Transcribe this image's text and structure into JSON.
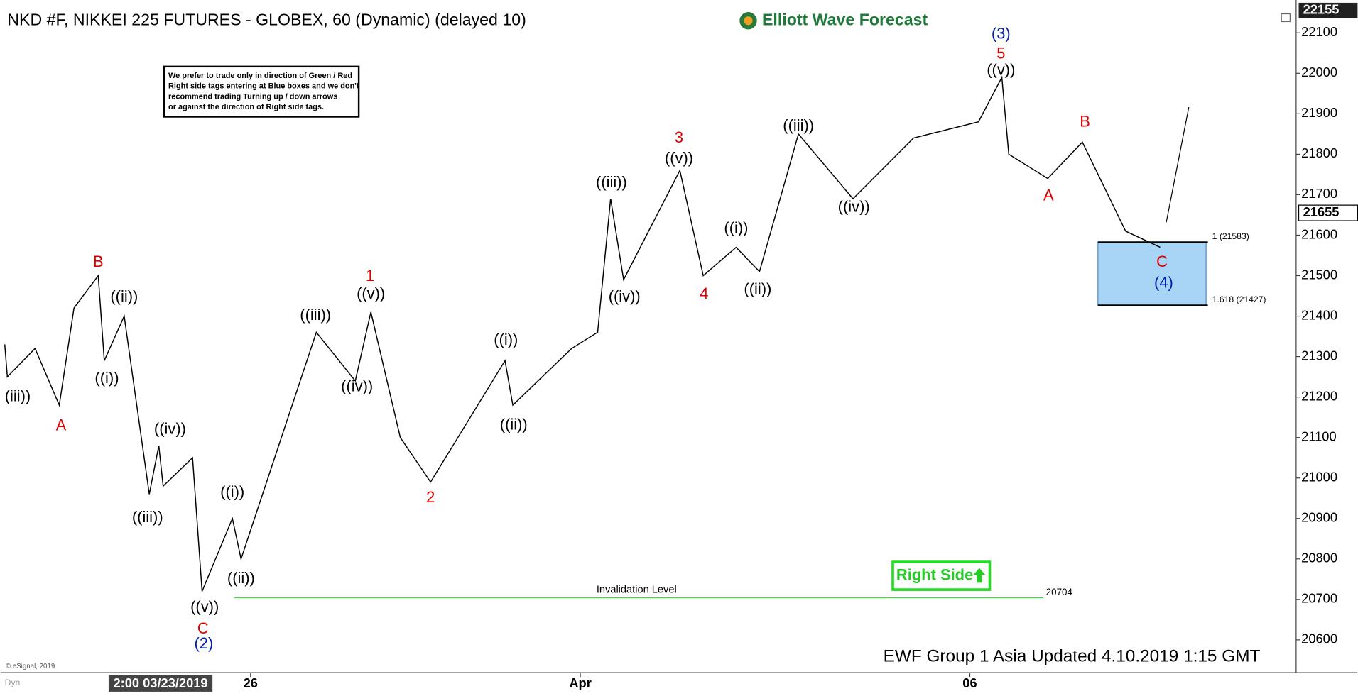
{
  "chart_data": {
    "type": "line",
    "title": "NKD #F, NIKKEI 225 FUTURES - GLOBEX, 60 (Dynamic) (delayed 10)",
    "brand": "Elliott Wave Forecast",
    "note": [
      "We prefer to trade only in direction of Green / Red",
      "Right side tags entering at Blue boxes and we don't",
      "recommend trading Turning up / down arrows",
      "or against the direction of Right side tags."
    ],
    "footer": "EWF Group 1 Asia Updated 4.10.2019 1:15 GMT",
    "copyright": "© eSignal, 2019",
    "corner_label": "Dyn",
    "right_side": "Right Side",
    "xlim": [
      0,
      149.7
    ],
    "ylim": [
      20519,
      22164
    ],
    "xticks": [
      {
        "value": 28.9,
        "label": "26"
      },
      {
        "value": 67.0,
        "label": "Apr"
      },
      {
        "value": 112.0,
        "label": "06"
      }
    ],
    "cursor": {
      "value": 18.5,
      "label": "2:00 03/23/2019"
    },
    "yticks": [
      20600,
      20700,
      20800,
      20900,
      21000,
      21100,
      21200,
      21300,
      21400,
      21500,
      21600,
      21700,
      21800,
      21900,
      22000,
      22100
    ],
    "high_price": 22155,
    "last_price": 21655,
    "invalidation": {
      "label": "Invalidation Level",
      "value": 20704
    },
    "fib_levels": [
      {
        "value": 21583,
        "label": "1 (21583)"
      },
      {
        "value": 21427,
        "label": "1.618 (21427)"
      }
    ],
    "series": [
      {
        "name": "NKD #F",
        "color": "#000000",
        "x": [
          0.5,
          0.8,
          4.0,
          6.8,
          8.5,
          11.3,
          12.0,
          14.3,
          17.2,
          18.3,
          18.8,
          22.2,
          23.3,
          26.8,
          27.8,
          36.5,
          41.0,
          42.8,
          46.2,
          49.7,
          58.3,
          59.2,
          66.0,
          69.0,
          70.5,
          72.0,
          78.5,
          81.2,
          85.0,
          87.7,
          92.2,
          98.5,
          105.5,
          113.0,
          115.7,
          116.5,
          121.0,
          125.0,
          130.0,
          134.0
        ],
        "values": [
          21330,
          21250,
          21320,
          21180,
          21420,
          21500,
          21290,
          21400,
          20960,
          21080,
          20980,
          21050,
          20720,
          20900,
          20800,
          21360,
          21240,
          21410,
          21100,
          20990,
          21290,
          21180,
          21320,
          21360,
          21690,
          21490,
          21760,
          21500,
          21570,
          21510,
          21850,
          21690,
          21840,
          21880,
          21990,
          21800,
          21740,
          21830,
          21610,
          21570
        ]
      }
    ],
    "annotations": [
      {
        "text": "(iii))",
        "color": "#000000",
        "x": 2.0,
        "y": 21200
      },
      {
        "text": "A",
        "color": "#dd0000",
        "x": 7.0,
        "y": 21128
      },
      {
        "text": "B",
        "color": "#dd0000",
        "x": 11.3,
        "y": 21532
      },
      {
        "text": "((ii))",
        "color": "#000000",
        "x": 14.3,
        "y": 21446
      },
      {
        "text": "((i))",
        "color": "#000000",
        "x": 12.3,
        "y": 21245
      },
      {
        "text": "((iv))",
        "color": "#000000",
        "x": 19.6,
        "y": 21119
      },
      {
        "text": "((iii))",
        "color": "#000000",
        "x": 17.0,
        "y": 20901
      },
      {
        "text": "((i))",
        "color": "#000000",
        "x": 26.8,
        "y": 20963
      },
      {
        "text": "((ii))",
        "color": "#000000",
        "x": 27.8,
        "y": 20750
      },
      {
        "text": "((v))",
        "color": "#000000",
        "x": 23.6,
        "y": 20679
      },
      {
        "text": "C",
        "color": "#dd0000",
        "x": 23.4,
        "y": 20626
      },
      {
        "text": "(2)",
        "color": "#0022aa",
        "x": 23.5,
        "y": 20589
      },
      {
        "text": "((iii))",
        "color": "#000000",
        "x": 36.4,
        "y": 21401
      },
      {
        "text": "1",
        "color": "#dd0000",
        "x": 42.7,
        "y": 21497
      },
      {
        "text": "((v))",
        "color": "#000000",
        "x": 42.8,
        "y": 21453
      },
      {
        "text": "((iv))",
        "color": "#000000",
        "x": 41.2,
        "y": 21224
      },
      {
        "text": "2",
        "color": "#dd0000",
        "x": 49.7,
        "y": 20950
      },
      {
        "text": "((i))",
        "color": "#000000",
        "x": 58.4,
        "y": 21339
      },
      {
        "text": "((ii))",
        "color": "#000000",
        "x": 59.3,
        "y": 21130
      },
      {
        "text": "((iii))",
        "color": "#000000",
        "x": 70.6,
        "y": 21728
      },
      {
        "text": "((iv))",
        "color": "#000000",
        "x": 72.1,
        "y": 21446
      },
      {
        "text": "3",
        "color": "#dd0000",
        "x": 78.4,
        "y": 21839
      },
      {
        "text": "((v))",
        "color": "#000000",
        "x": 78.4,
        "y": 21788
      },
      {
        "text": "4",
        "color": "#dd0000",
        "x": 81.3,
        "y": 21453
      },
      {
        "text": "((i))",
        "color": "#000000",
        "x": 85.0,
        "y": 21615
      },
      {
        "text": "((ii))",
        "color": "#000000",
        "x": 87.5,
        "y": 21465
      },
      {
        "text": "((iii))",
        "color": "#000000",
        "x": 92.2,
        "y": 21869
      },
      {
        "text": "((iv))",
        "color": "#000000",
        "x": 98.6,
        "y": 21668
      },
      {
        "text": "(3)",
        "color": "#0022aa",
        "x": 115.6,
        "y": 22096
      },
      {
        "text": "5",
        "color": "#dd0000",
        "x": 115.6,
        "y": 22047
      },
      {
        "text": "((v))",
        "color": "#000000",
        "x": 115.6,
        "y": 22006
      },
      {
        "text": "A",
        "color": "#dd0000",
        "x": 121.1,
        "y": 21696
      },
      {
        "text": "B",
        "color": "#dd0000",
        "x": 125.3,
        "y": 21878
      },
      {
        "text": "C",
        "color": "#dd0000",
        "x": 134.2,
        "y": 21532
      },
      {
        "text": "(4)",
        "color": "#0022aa",
        "x": 134.4,
        "y": 21480
      }
    ]
  }
}
